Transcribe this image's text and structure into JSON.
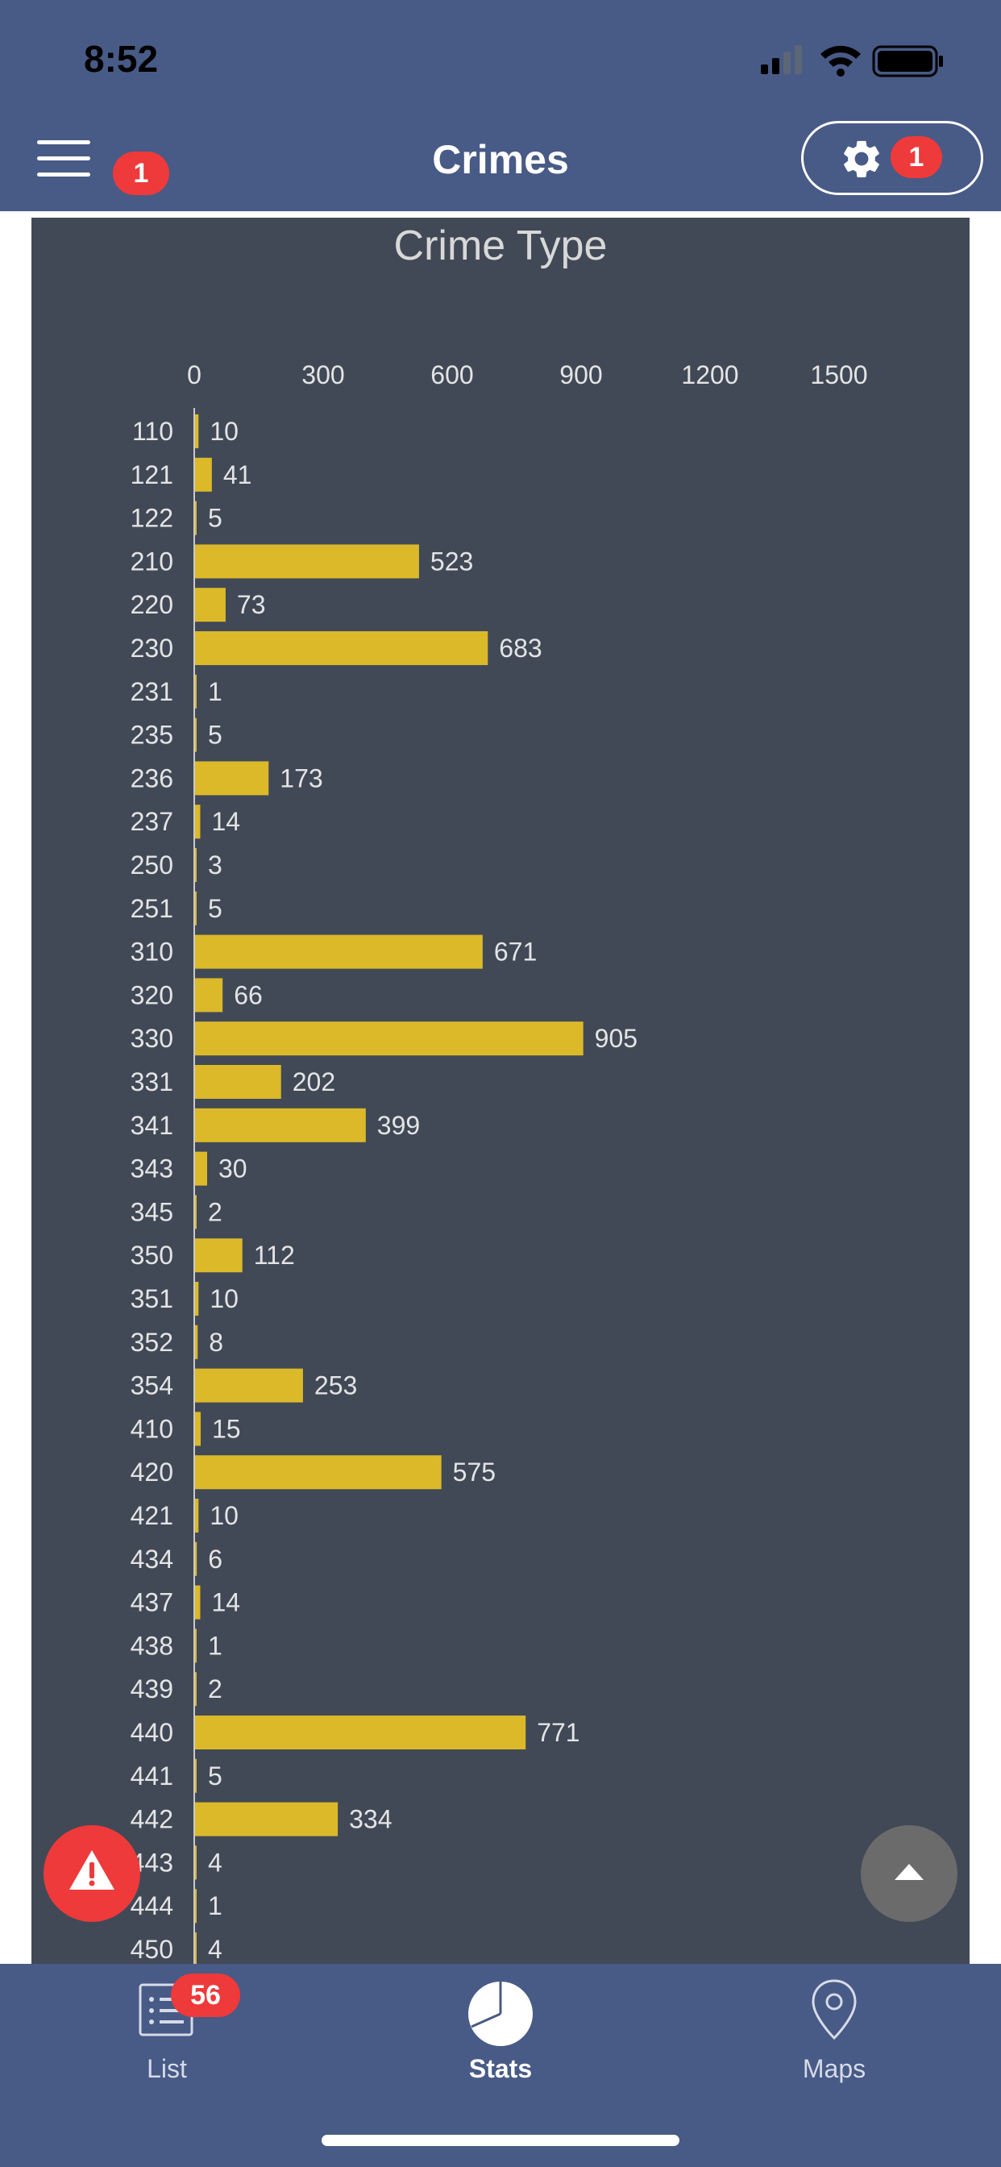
{
  "status": {
    "time": "8:52"
  },
  "header": {
    "title": "Crimes",
    "menu_badge": "1",
    "settings_badge": "1"
  },
  "tabs": [
    {
      "label": "List",
      "badge": "56",
      "icon": "list-icon"
    },
    {
      "label": "Stats",
      "icon": "pie-chart-icon",
      "active": true
    },
    {
      "label": "Maps",
      "icon": "map-pin-icon"
    }
  ],
  "colors": {
    "header": "#485a86",
    "chart_bg": "#414957",
    "bar": "#dbb929",
    "alert": "#ee3a3a"
  },
  "chart_data": {
    "type": "bar",
    "orientation": "horizontal",
    "title": "Crime Type",
    "xticks": [
      0,
      300,
      600,
      900,
      1200,
      1500
    ],
    "xlim": [
      0,
      1500
    ],
    "axis_position": "top",
    "categories": [
      "110",
      "121",
      "122",
      "210",
      "220",
      "230",
      "231",
      "235",
      "236",
      "237",
      "250",
      "251",
      "310",
      "320",
      "330",
      "331",
      "341",
      "343",
      "345",
      "350",
      "351",
      "352",
      "354",
      "410",
      "420",
      "421",
      "434",
      "437",
      "438",
      "439",
      "440",
      "441",
      "442",
      "443",
      "444",
      "450"
    ],
    "values": [
      10,
      41,
      5,
      523,
      73,
      683,
      1,
      5,
      173,
      14,
      3,
      5,
      671,
      66,
      905,
      202,
      399,
      30,
      2,
      112,
      10,
      8,
      253,
      15,
      575,
      10,
      6,
      14,
      1,
      2,
      771,
      5,
      334,
      4,
      1,
      4
    ]
  }
}
